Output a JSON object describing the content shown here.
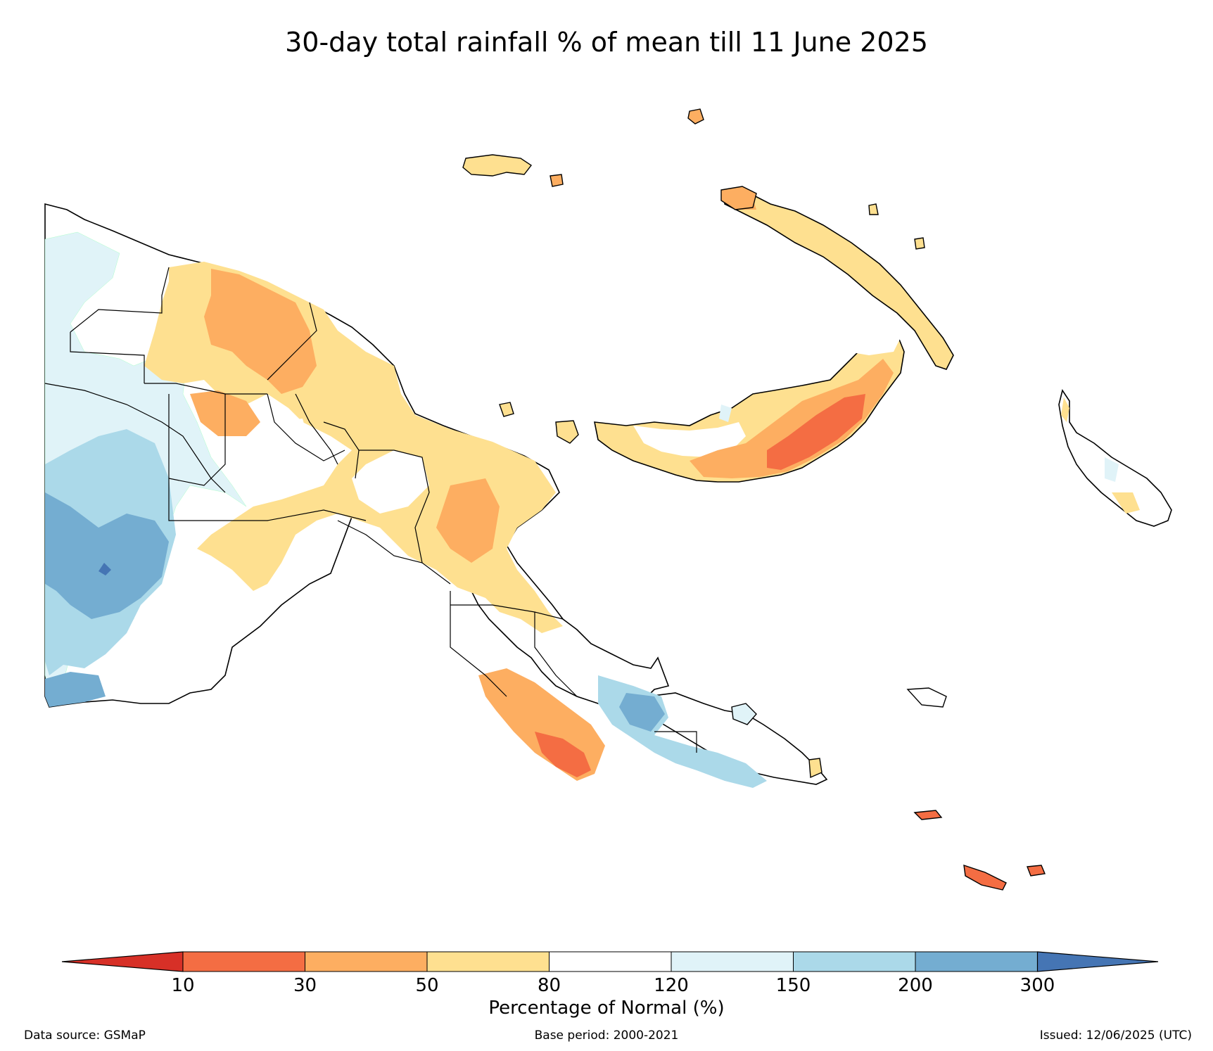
{
  "title": "30-day total rainfall % of mean till 11 June 2025",
  "legend": {
    "title": "Percentage of Normal (%)",
    "ticks": [
      "10",
      "30",
      "50",
      "80",
      "120",
      "150",
      "200",
      "300"
    ],
    "bins": [
      {
        "range": "<10",
        "color": "#d73027"
      },
      {
        "range": "10-30",
        "color": "#f46d43"
      },
      {
        "range": "30-50",
        "color": "#fdae61"
      },
      {
        "range": "50-80",
        "color": "#fee090"
      },
      {
        "range": "80-120",
        "color": "#ffffff"
      },
      {
        "range": "120-150",
        "color": "#e0f3f8"
      },
      {
        "range": "150-200",
        "color": "#abd9e9"
      },
      {
        "range": "200-300",
        "color": "#74add1"
      },
      {
        "range": ">300",
        "color": "#4575b4"
      }
    ]
  },
  "footer": {
    "source": "Data source: GSMaP",
    "base_period": "Base period: 2000-2021",
    "issued": "Issued: 12/06/2025 (UTC)"
  }
}
